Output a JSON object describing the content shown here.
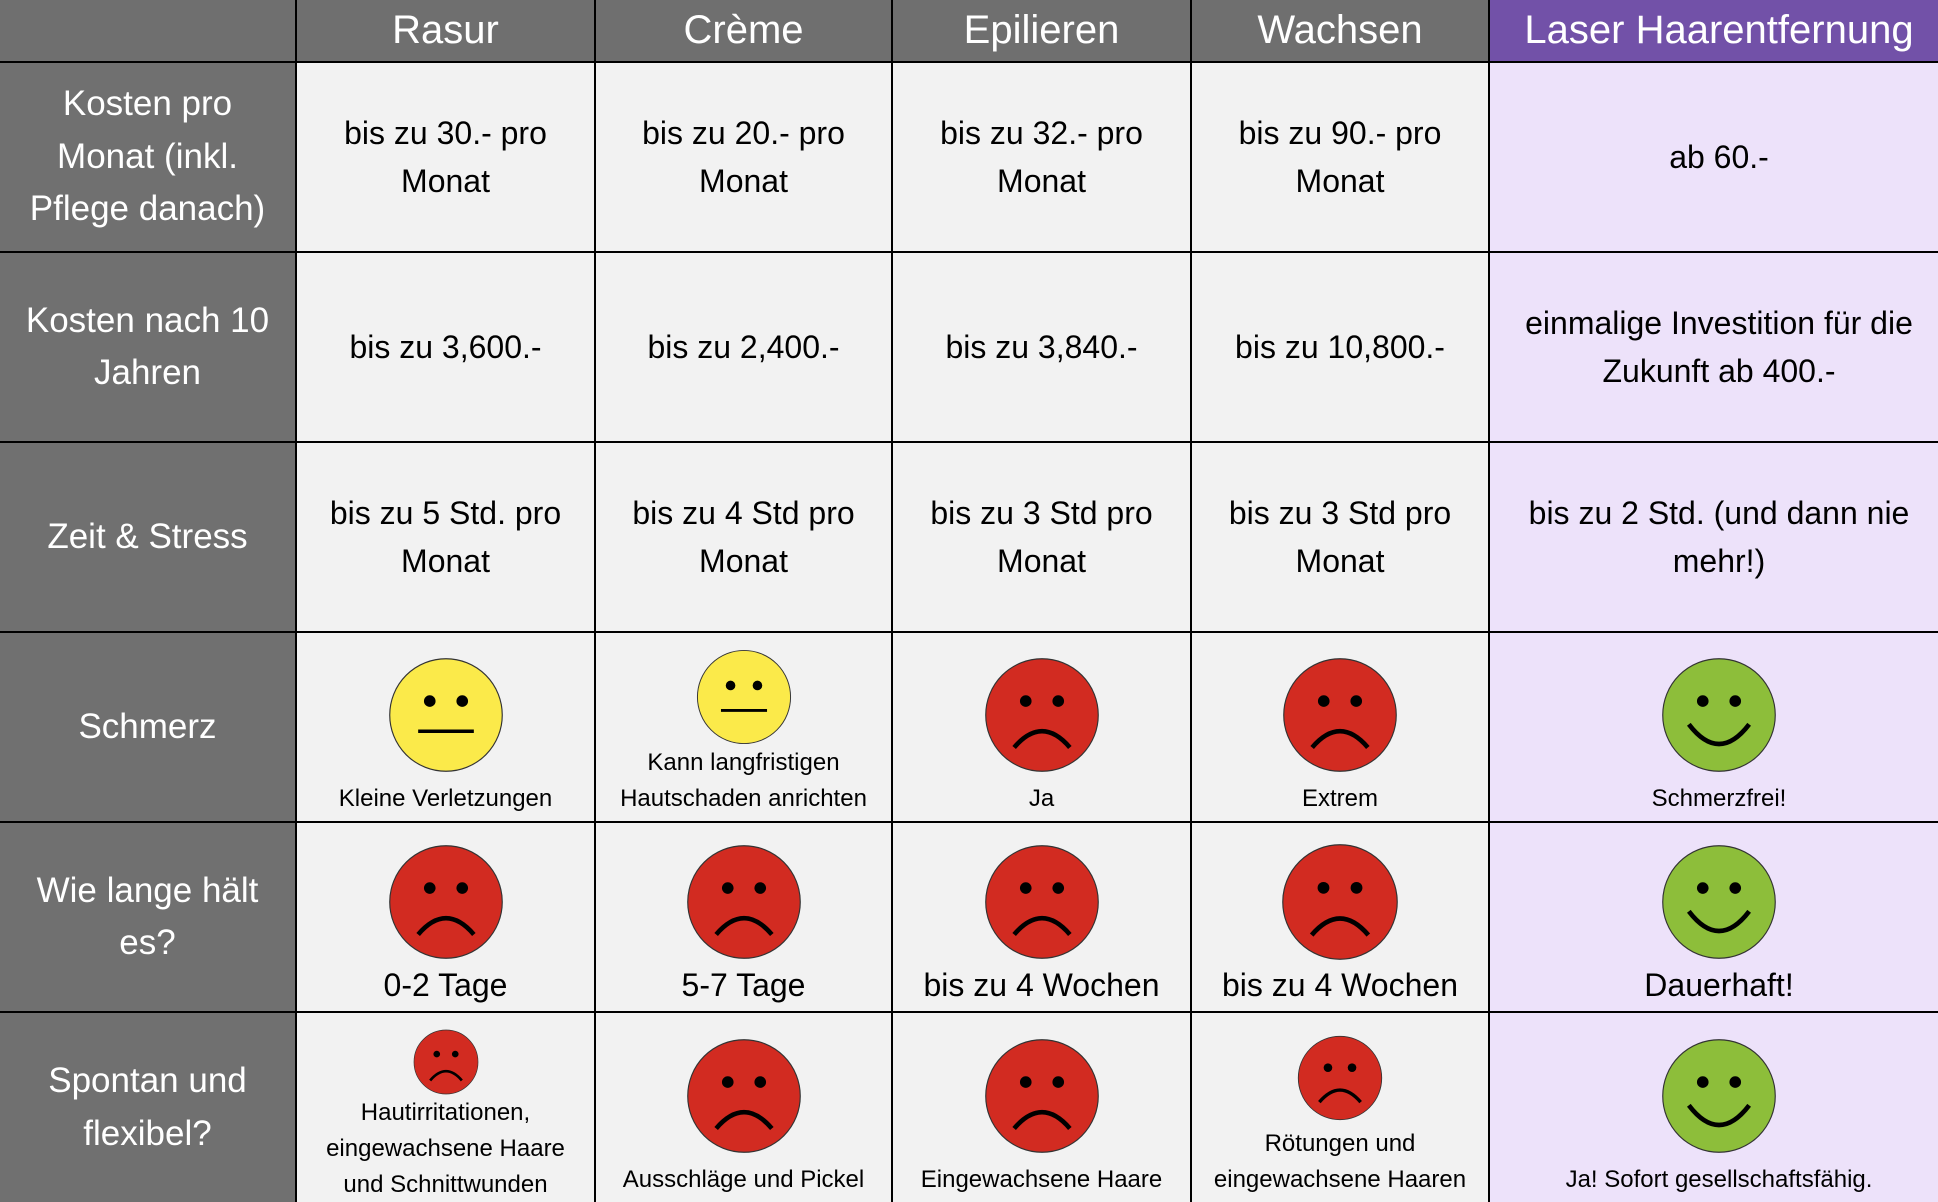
{
  "columns": [
    "",
    "Rasur",
    "Crème",
    "Epilieren",
    "Wachsen",
    "Laser Haarentfernung"
  ],
  "colors": {
    "header_gray": "#6f6f6f",
    "header_laser": "#7251a8",
    "cell": "#f2f2f2",
    "cell_laser": "#ede2fa",
    "neutral": "#fbea4a",
    "sad": "#d22b21",
    "happy": "#8dbe3a"
  },
  "rows": [
    {
      "label": "Kosten pro Monat (inkl. Pflege danach)",
      "cells": [
        {
          "text": "bis zu 30.- pro Monat"
        },
        {
          "text": "bis zu 20.- pro Monat"
        },
        {
          "text": "bis zu 32.- pro Monat"
        },
        {
          "text": "bis zu 90.- pro Monat"
        },
        {
          "text": "ab 60.-"
        }
      ]
    },
    {
      "label": "Kosten nach 10 Jahren",
      "cells": [
        {
          "text": "bis zu 3,600.-"
        },
        {
          "text": "bis zu 2,400.-"
        },
        {
          "text": "bis zu 3,840.-"
        },
        {
          "text": "bis zu 10,800.-"
        },
        {
          "text": "einmalige Investition für die Zukunft ab 400.-"
        }
      ]
    },
    {
      "label": "Zeit & Stress",
      "cells": [
        {
          "text": "bis zu 5 Std. pro Monat"
        },
        {
          "text": "bis zu 4 Std pro Monat"
        },
        {
          "text": "bis zu 3 Std pro Monat"
        },
        {
          "text": "bis zu 3 Std pro Monat"
        },
        {
          "text": "bis zu 2 Std. (und dann nie mehr!)"
        }
      ]
    },
    {
      "label": "Schmerz",
      "cells": [
        {
          "face": "neutral",
          "text": "Kleine Verletzungen"
        },
        {
          "face": "neutral",
          "text": "Kann langfristigen Hautschaden anrichten"
        },
        {
          "face": "sad",
          "text": "Ja"
        },
        {
          "face": "sad",
          "text": "Extrem"
        },
        {
          "face": "happy",
          "text": "Schmerzfrei!"
        }
      ]
    },
    {
      "label": "Wie lange hält es?",
      "cells": [
        {
          "face": "sad",
          "text": "0-2 Tage"
        },
        {
          "face": "sad",
          "text": "5-7 Tage"
        },
        {
          "face": "sad",
          "text": "bis zu 4 Wochen"
        },
        {
          "face": "sad",
          "text": "bis zu 4 Wochen"
        },
        {
          "face": "happy",
          "text": "Dauerhaft!"
        }
      ]
    },
    {
      "label": "Spontan und flexibel?",
      "cells": [
        {
          "face": "sad",
          "text": "Hautirritationen, eingewachsene Haare und Schnittwunden"
        },
        {
          "face": "sad",
          "text": "Ausschläge und Pickel"
        },
        {
          "face": "sad",
          "text": "Eingewachsene Haare"
        },
        {
          "face": "sad",
          "text": "Rötungen und eingewachsene Haaren"
        },
        {
          "face": "happy",
          "text": "Ja! Sofort gesellschaftsfähig."
        }
      ]
    }
  ]
}
